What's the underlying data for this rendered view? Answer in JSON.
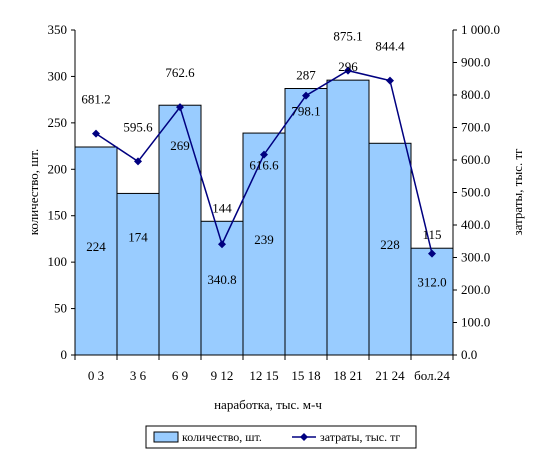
{
  "chart_data": {
    "type": "bar",
    "categories": [
      "0 3",
      "3 6",
      "6 9",
      "9 12",
      "12 15",
      "15 18",
      "18 21",
      "21 24",
      "бол.24"
    ],
    "xlabel": "наработка, тыс. м-ч",
    "ylabel": "количество, шт.",
    "y2label": "затраты, тыс. тг",
    "ylim": [
      0,
      350
    ],
    "yticks": [
      "0",
      "50",
      "100",
      "150",
      "200",
      "250",
      "300",
      "350"
    ],
    "y2lim": [
      0,
      1000
    ],
    "y2ticks": [
      "0.0",
      "100.0",
      "200.0",
      "300.0",
      "400.0",
      "500.0",
      "600.0",
      "700.0",
      "800.0",
      "900.0",
      "1 000.0"
    ],
    "grid": false,
    "legend_position": "bottom",
    "series": [
      {
        "name": "количество, шт.",
        "kind": "bar",
        "axis": "left",
        "color": "#99ccff",
        "values": [
          224,
          174,
          269,
          144,
          239,
          287,
          296,
          228,
          115
        ],
        "labels": [
          "224",
          "174",
          "269",
          "144",
          "239",
          "287",
          "296",
          "228",
          "115"
        ]
      },
      {
        "name": "затраты, тыс. тг",
        "kind": "line",
        "axis": "right",
        "color": "#000080",
        "marker": "diamond",
        "values": [
          681.2,
          595.6,
          762.6,
          340.8,
          616.6,
          798.1,
          875.1,
          844.4,
          312.0
        ],
        "labels": [
          "681.2",
          "595.6",
          "762.6",
          "340.8",
          "616.6",
          "798.1",
          "875.1",
          "844.4",
          "312.0"
        ]
      }
    ]
  }
}
